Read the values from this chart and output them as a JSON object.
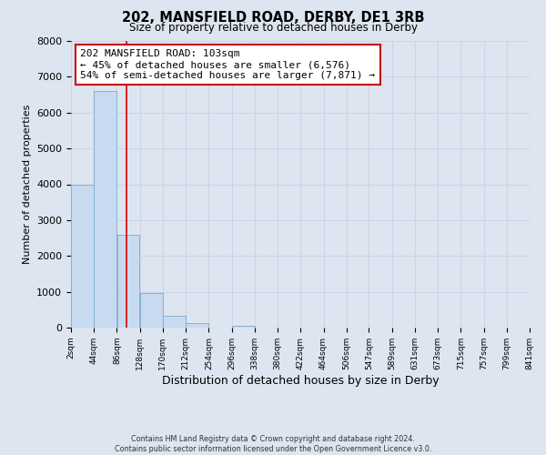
{
  "title": "202, MANSFIELD ROAD, DERBY, DE1 3RB",
  "subtitle": "Size of property relative to detached houses in Derby",
  "xlabel": "Distribution of detached houses by size in Derby",
  "ylabel": "Number of detached properties",
  "bin_edges": [
    2,
    44,
    86,
    128,
    170,
    212,
    254,
    296,
    338,
    380,
    422,
    464,
    506,
    547,
    589,
    631,
    673,
    715,
    757,
    799,
    841
  ],
  "bar_heights": [
    4000,
    6600,
    2600,
    960,
    320,
    120,
    0,
    50,
    0,
    0,
    0,
    0,
    0,
    0,
    0,
    0,
    0,
    0,
    0,
    0
  ],
  "bar_color": "#c8daf0",
  "bar_edgecolor": "#7aabcf",
  "vline_x": 103,
  "vline_color": "#dd0000",
  "ylim": [
    0,
    8000
  ],
  "yticks": [
    0,
    1000,
    2000,
    3000,
    4000,
    5000,
    6000,
    7000,
    8000
  ],
  "tick_labels": [
    "2sqm",
    "44sqm",
    "86sqm",
    "128sqm",
    "170sqm",
    "212sqm",
    "254sqm",
    "296sqm",
    "338sqm",
    "380sqm",
    "422sqm",
    "464sqm",
    "506sqm",
    "547sqm",
    "589sqm",
    "631sqm",
    "673sqm",
    "715sqm",
    "757sqm",
    "799sqm",
    "841sqm"
  ],
  "annotation_title": "202 MANSFIELD ROAD: 103sqm",
  "annotation_line1": "← 45% of detached houses are smaller (6,576)",
  "annotation_line2": "54% of semi-detached houses are larger (7,871) →",
  "annotation_box_color": "#ffffff",
  "annotation_box_edgecolor": "#cc0000",
  "grid_color": "#ccd5e8",
  "background_color": "#dde5f0",
  "footer_line1": "Contains HM Land Registry data © Crown copyright and database right 2024.",
  "footer_line2": "Contains public sector information licensed under the Open Government Licence v3.0."
}
